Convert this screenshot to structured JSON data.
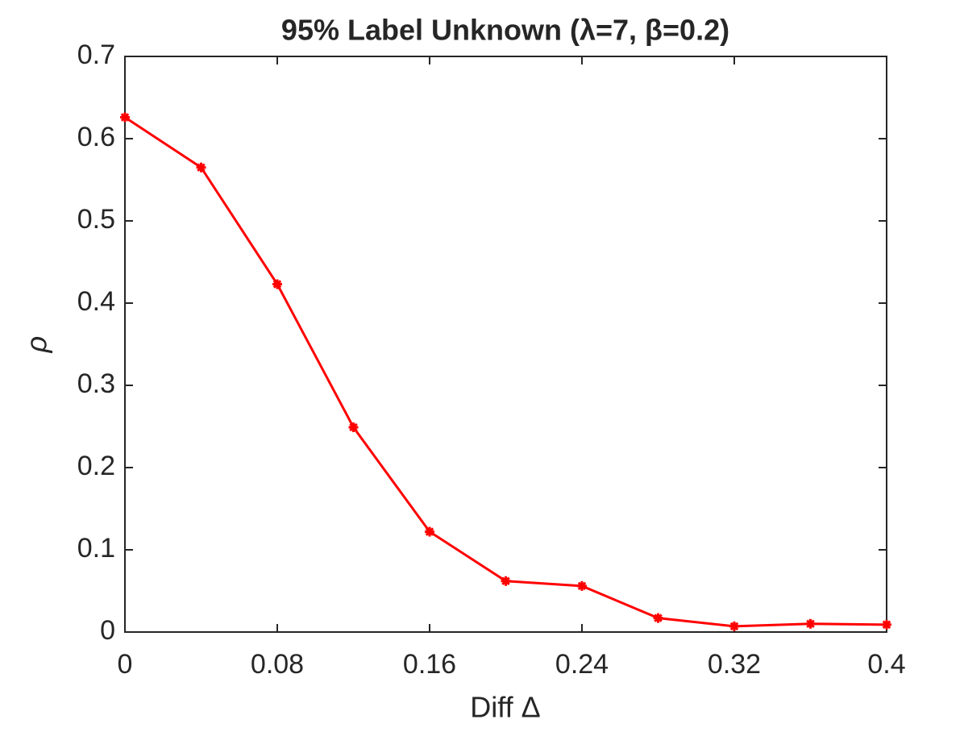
{
  "chart_data": {
    "type": "line",
    "title": "95% Label Unknown (λ=7, β=0.2)",
    "x_label": "Diff Δ",
    "y_label": "ρ",
    "x": [
      0,
      0.04,
      0.08,
      0.12,
      0.16,
      0.2,
      0.24,
      0.28,
      0.32,
      0.36,
      0.4
    ],
    "series": [
      {
        "color": "#ff0000",
        "values": [
          0.626,
          0.565,
          0.423,
          0.249,
          0.122,
          0.062,
          0.056,
          0.017,
          0.007,
          0.01,
          0.009
        ]
      }
    ],
    "xlim": [
      0,
      0.4
    ],
    "xticks": [
      0,
      0.08,
      0.16,
      0.24,
      0.32,
      0.4
    ],
    "ylim": [
      0,
      0.7
    ],
    "yticks": [
      0,
      0.1,
      0.2,
      0.3,
      0.4,
      0.5,
      0.6,
      0.7
    ],
    "grid": false
  }
}
